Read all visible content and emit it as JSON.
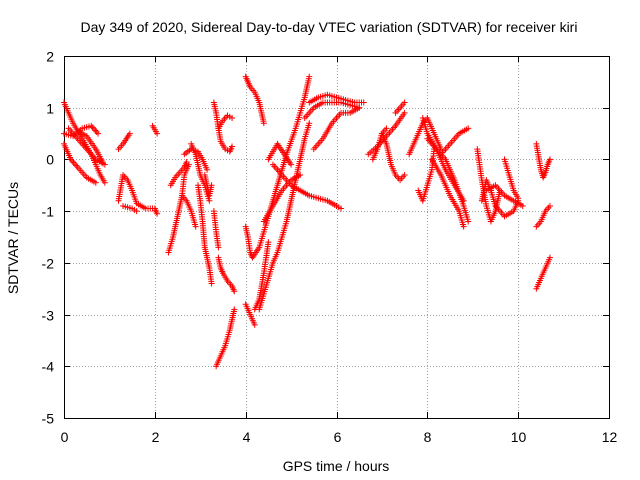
{
  "chart_data": {
    "type": "scatter",
    "title": "Day 349 of 2020, Sidereal Day-to-day VTEC variation (SDTVAR) for receiver kiri",
    "xlabel": "GPS time / hours",
    "ylabel": "SDTVAR / TECUs",
    "xlim": [
      0,
      12
    ],
    "ylim": [
      -5,
      2
    ],
    "x_ticks": [
      "0",
      "2",
      "4",
      "6",
      "8",
      "10",
      "12"
    ],
    "y_ticks": [
      "2",
      "1",
      "0",
      "-1",
      "-2",
      "-3",
      "-4",
      "-5"
    ],
    "grid": true,
    "marker": "+",
    "color": "#ff0000",
    "tracks": [
      {
        "x": [
          0.0,
          0.2,
          0.4,
          0.6,
          0.8,
          0.9
        ],
        "y": [
          1.1,
          0.7,
          0.4,
          0.1,
          -0.3,
          -0.45
        ]
      },
      {
        "x": [
          0.0,
          0.15,
          0.3,
          0.5,
          0.7
        ],
        "y": [
          0.3,
          0.0,
          -0.15,
          -0.35,
          -0.45
        ]
      },
      {
        "x": [
          0.1,
          0.3,
          0.5,
          0.7,
          0.9
        ],
        "y": [
          0.6,
          0.4,
          0.2,
          0.0,
          -0.1
        ]
      },
      {
        "x": [
          0.0,
          0.2,
          0.4,
          0.6,
          0.75
        ],
        "y": [
          0.5,
          0.45,
          0.6,
          0.65,
          0.5
        ]
      },
      {
        "x": [
          0.3,
          0.5,
          0.7,
          0.85
        ],
        "y": [
          0.55,
          0.45,
          0.2,
          -0.05
        ]
      },
      {
        "x": [
          1.2,
          1.3,
          1.45
        ],
        "y": [
          0.2,
          0.3,
          0.5
        ]
      },
      {
        "x": [
          1.2,
          1.3,
          1.4,
          1.5,
          1.6,
          1.8,
          2.0,
          2.05
        ],
        "y": [
          -0.8,
          -0.3,
          -0.4,
          -0.6,
          -0.85,
          -0.95,
          -0.95,
          -1.05
        ]
      },
      {
        "x": [
          1.3,
          1.5,
          1.6
        ],
        "y": [
          -0.9,
          -0.95,
          -1.0
        ]
      },
      {
        "x": [
          1.95,
          2.05
        ],
        "y": [
          0.65,
          0.5
        ]
      },
      {
        "x": [
          2.3,
          2.4,
          2.5,
          2.6,
          2.65,
          2.75
        ],
        "y": [
          -1.8,
          -1.5,
          -1.1,
          -0.7,
          -0.3,
          -0.1
        ]
      },
      {
        "x": [
          2.35,
          2.45,
          2.55,
          2.65,
          2.7
        ],
        "y": [
          -0.5,
          -0.35,
          -0.25,
          -0.15,
          -0.05
        ]
      },
      {
        "x": [
          2.6,
          2.7,
          2.8,
          2.9
        ],
        "y": [
          -0.7,
          -0.8,
          -1.0,
          -1.3
        ]
      },
      {
        "x": [
          2.65,
          2.8,
          2.95,
          3.05,
          3.15
        ],
        "y": [
          0.1,
          0.2,
          0.15,
          0.0,
          -0.2
        ]
      },
      {
        "x": [
          2.8,
          2.9,
          3.0,
          3.1,
          3.2
        ],
        "y": [
          0.3,
          0.1,
          -0.3,
          -0.5,
          -0.8
        ]
      },
      {
        "x": [
          2.95,
          3.0,
          3.05,
          3.1,
          3.2,
          3.25
        ],
        "y": [
          -0.5,
          -0.8,
          -1.2,
          -1.7,
          -2.1,
          -2.4
        ]
      },
      {
        "x": [
          3.1,
          3.15,
          3.2,
          3.25
        ],
        "y": [
          -0.3,
          -0.5,
          -0.7,
          -0.5
        ]
      },
      {
        "x": [
          3.3,
          3.35,
          3.4,
          3.45,
          3.55,
          3.65,
          3.7
        ],
        "y": [
          1.1,
          0.9,
          0.6,
          0.35,
          0.2,
          0.15,
          0.25
        ]
      },
      {
        "x": [
          3.4,
          3.5,
          3.6,
          3.7
        ],
        "y": [
          0.6,
          0.75,
          0.85,
          0.8
        ]
      },
      {
        "x": [
          3.3,
          3.35,
          3.4
        ],
        "y": [
          -1.0,
          -1.4,
          -1.7
        ]
      },
      {
        "x": [
          3.4,
          3.45,
          3.5,
          3.6,
          3.7,
          3.75
        ],
        "y": [
          -1.9,
          -2.1,
          -2.2,
          -2.35,
          -2.45,
          -2.55
        ]
      },
      {
        "x": [
          3.35,
          3.45,
          3.55,
          3.65,
          3.75
        ],
        "y": [
          -4.0,
          -3.8,
          -3.6,
          -3.3,
          -2.9
        ]
      },
      {
        "x": [
          4.0,
          4.05,
          4.1,
          4.2,
          4.3,
          4.35,
          4.4
        ],
        "y": [
          1.6,
          1.5,
          1.4,
          1.3,
          1.1,
          0.9,
          0.7
        ]
      },
      {
        "x": [
          4.0,
          4.05,
          4.1,
          4.15,
          4.3,
          4.4,
          4.5,
          4.7,
          4.9,
          5.1,
          5.2,
          5.3,
          5.4
        ],
        "y": [
          -1.3,
          -1.5,
          -1.8,
          -1.9,
          -1.7,
          -1.4,
          -1.1,
          -0.5,
          0.1,
          0.6,
          0.9,
          1.2,
          1.6
        ]
      },
      {
        "x": [
          4.4,
          4.6,
          4.8,
          5.0,
          5.2
        ],
        "y": [
          -1.2,
          -0.9,
          -0.6,
          -0.4,
          -0.3
        ]
      },
      {
        "x": [
          4.5,
          4.6,
          4.7,
          4.85,
          5.0
        ],
        "y": [
          0.0,
          0.15,
          0.3,
          0.1,
          -0.1
        ]
      },
      {
        "x": [
          4.6,
          4.8,
          5.0,
          5.2,
          5.4,
          5.6,
          5.8,
          6.0,
          6.1
        ],
        "y": [
          -0.1,
          -0.3,
          -0.5,
          -0.6,
          -0.7,
          -0.75,
          -0.8,
          -0.9,
          -0.95
        ]
      },
      {
        "x": [
          4.0,
          4.1,
          4.2
        ],
        "y": [
          -2.8,
          -3.0,
          -3.2
        ]
      },
      {
        "x": [
          4.3,
          4.4,
          4.5,
          4.6,
          4.7,
          4.8,
          4.9,
          5.0,
          5.1,
          5.2,
          5.3,
          5.4
        ],
        "y": [
          -2.9,
          -2.6,
          -2.3,
          -2.0,
          -1.8,
          -1.5,
          -1.2,
          -0.8,
          -0.4,
          0.0,
          0.4,
          0.7
        ]
      },
      {
        "x": [
          4.2,
          4.3,
          4.4,
          4.5
        ],
        "y": [
          -2.9,
          -2.7,
          -2.2,
          -1.6
        ]
      },
      {
        "x": [
          5.4,
          5.6,
          5.8,
          6.0,
          6.2,
          6.4,
          6.6
        ],
        "y": [
          1.1,
          1.2,
          1.25,
          1.2,
          1.15,
          1.1,
          1.1
        ]
      },
      {
        "x": [
          5.3,
          5.5,
          5.7,
          5.9,
          6.1,
          6.3,
          6.5
        ],
        "y": [
          0.8,
          1.0,
          1.1,
          1.1,
          1.1,
          1.05,
          1.0
        ]
      },
      {
        "x": [
          5.5,
          5.7,
          5.9,
          6.1,
          6.3,
          6.5
        ],
        "y": [
          0.2,
          0.4,
          0.7,
          0.9,
          0.9,
          1.0
        ]
      },
      {
        "x": [
          6.8,
          6.9,
          7.0,
          7.1
        ],
        "y": [
          -0.0,
          0.2,
          0.5,
          0.6
        ]
      },
      {
        "x": [
          6.7,
          6.9,
          7.1,
          7.3,
          7.5
        ],
        "y": [
          0.1,
          0.25,
          0.45,
          0.65,
          0.9
        ]
      },
      {
        "x": [
          7.0,
          7.1,
          7.2,
          7.3,
          7.4,
          7.5
        ],
        "y": [
          0.5,
          0.3,
          -0.1,
          -0.3,
          -0.4,
          -0.3
        ]
      },
      {
        "x": [
          7.3,
          7.4,
          7.5
        ],
        "y": [
          0.9,
          1.0,
          1.1
        ]
      },
      {
        "x": [
          7.6,
          7.7,
          7.8,
          7.9,
          8.0,
          8.1,
          8.2,
          8.3
        ],
        "y": [
          0.1,
          0.3,
          0.5,
          0.7,
          0.8,
          0.6,
          0.4,
          0.2
        ]
      },
      {
        "x": [
          7.8,
          7.9,
          8.0,
          8.1,
          8.15
        ],
        "y": [
          -0.6,
          -0.8,
          -0.5,
          -0.2,
          0.2
        ]
      },
      {
        "x": [
          7.9,
          8.0,
          8.2,
          8.4,
          8.6,
          8.8
        ],
        "y": [
          0.8,
          0.5,
          0.2,
          -0.2,
          -0.5,
          -0.8
        ]
      },
      {
        "x": [
          8.0,
          8.2,
          8.4,
          8.6,
          8.8,
          8.9
        ],
        "y": [
          0.4,
          0.2,
          0.0,
          -0.4,
          -0.9,
          -1.2
        ]
      },
      {
        "x": [
          8.1,
          8.3,
          8.5,
          8.7,
          8.8
        ],
        "y": [
          0.0,
          -0.3,
          -0.7,
          -1.0,
          -1.3
        ]
      },
      {
        "x": [
          8.3,
          8.5,
          8.7,
          8.9
        ],
        "y": [
          0.1,
          0.3,
          0.5,
          0.6
        ]
      },
      {
        "x": [
          9.1,
          9.2,
          9.3,
          9.4,
          9.5,
          9.6
        ],
        "y": [
          0.2,
          -0.4,
          -0.9,
          -1.2,
          -1.0,
          -0.6
        ]
      },
      {
        "x": [
          9.2,
          9.3,
          9.4,
          9.5,
          9.7,
          9.9,
          10.0
        ],
        "y": [
          -0.8,
          -0.4,
          -0.6,
          -0.9,
          -1.1,
          -1.0,
          -0.8
        ]
      },
      {
        "x": [
          9.3,
          9.5,
          9.7,
          9.9,
          10.1
        ],
        "y": [
          -0.6,
          -0.5,
          -0.7,
          -0.8,
          -0.9
        ]
      },
      {
        "x": [
          9.7,
          9.8,
          9.9,
          10.0
        ],
        "y": [
          0.0,
          -0.3,
          -0.6,
          -0.75
        ]
      },
      {
        "x": [
          10.4,
          10.45,
          10.5,
          10.55,
          10.6,
          10.65,
          10.7
        ],
        "y": [
          0.3,
          0.05,
          -0.2,
          -0.35,
          -0.25,
          -0.1,
          0.0
        ]
      },
      {
        "x": [
          10.4,
          10.5,
          10.6,
          10.7
        ],
        "y": [
          -1.3,
          -1.2,
          -1.0,
          -0.9
        ]
      },
      {
        "x": [
          10.4,
          10.5,
          10.6,
          10.7
        ],
        "y": [
          -2.5,
          -2.3,
          -2.1,
          -1.9
        ]
      }
    ]
  }
}
